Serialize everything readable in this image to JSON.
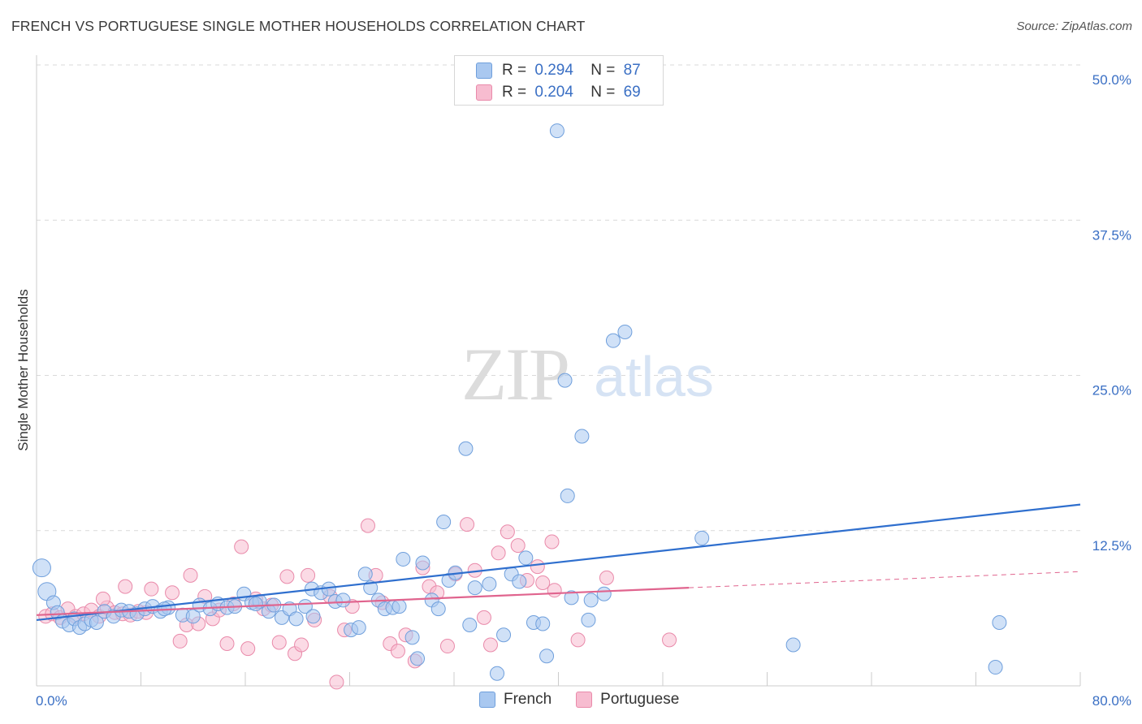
{
  "title": "FRENCH VS PORTUGUESE SINGLE MOTHER HOUSEHOLDS CORRELATION CHART",
  "source": "Source: ZipAtlas.com",
  "watermark": {
    "zip": "ZIP",
    "atlas": "atlas"
  },
  "legend": [
    {
      "r_label": "R =",
      "r_value": "0.294",
      "n_label": "N =",
      "n_value": "87"
    },
    {
      "r_label": "R =",
      "r_value": "0.204",
      "n_label": "N =",
      "n_value": "69"
    }
  ],
  "colors": {
    "french_fill": "#a9c8f0",
    "french_stroke": "#6f9fdc",
    "french_line": "#2f6fce",
    "portuguese_fill": "#f7bcd0",
    "portuguese_stroke": "#e98aaa",
    "portuguese_line": "#e0648e",
    "axis_label": "#3a6fc4",
    "grid": "#d9d9d9"
  },
  "chart_data": {
    "type": "scatter",
    "title": "FRENCH VS PORTUGUESE SINGLE MOTHER HOUSEHOLDS CORRELATION CHART",
    "xlabel": "",
    "ylabel": "Single Mother Households",
    "xlim": [
      0,
      80
    ],
    "ylim": [
      0,
      50
    ],
    "x_tick_labels": [
      "0.0%",
      "80.0%"
    ],
    "y_tick_labels": [
      "12.5%",
      "25.0%",
      "37.5%",
      "50.0%"
    ],
    "y_ticks": [
      12.5,
      25.0,
      37.5,
      50.0
    ],
    "grid": true,
    "legend_position": "top-center",
    "series": [
      {
        "name": "French",
        "r": 0.294,
        "n": 87,
        "trend": {
          "x": [
            0,
            80
          ],
          "y": [
            5.3,
            14.6
          ]
        },
        "points": [
          [
            0.4,
            9.5
          ],
          [
            0.8,
            7.6
          ],
          [
            1.3,
            6.7
          ],
          [
            1.6,
            5.9
          ],
          [
            2.0,
            5.2
          ],
          [
            2.5,
            4.9
          ],
          [
            2.9,
            5.4
          ],
          [
            3.3,
            4.7
          ],
          [
            3.7,
            5.0
          ],
          [
            4.2,
            5.3
          ],
          [
            4.6,
            5.1
          ],
          [
            5.2,
            6.0
          ],
          [
            5.9,
            5.6
          ],
          [
            6.5,
            6.1
          ],
          [
            7.1,
            6.0
          ],
          [
            7.7,
            5.8
          ],
          [
            8.3,
            6.2
          ],
          [
            8.9,
            6.4
          ],
          [
            9.5,
            6.0
          ],
          [
            10.1,
            6.3
          ],
          [
            11.2,
            5.7
          ],
          [
            12.0,
            5.6
          ],
          [
            12.5,
            6.5
          ],
          [
            13.3,
            6.2
          ],
          [
            13.9,
            6.6
          ],
          [
            14.6,
            6.3
          ],
          [
            15.2,
            6.4
          ],
          [
            15.9,
            7.4
          ],
          [
            16.5,
            6.7
          ],
          [
            17.1,
            6.8
          ],
          [
            17.8,
            6.0
          ],
          [
            18.2,
            6.5
          ],
          [
            18.8,
            5.5
          ],
          [
            19.4,
            6.2
          ],
          [
            19.9,
            5.4
          ],
          [
            20.6,
            6.4
          ],
          [
            21.2,
            5.6
          ],
          [
            21.1,
            7.8
          ],
          [
            21.8,
            7.5
          ],
          [
            22.4,
            7.8
          ],
          [
            22.9,
            6.8
          ],
          [
            23.5,
            6.9
          ],
          [
            24.1,
            4.5
          ],
          [
            24.7,
            4.7
          ],
          [
            25.2,
            9.0
          ],
          [
            25.6,
            7.9
          ],
          [
            26.2,
            6.9
          ],
          [
            26.7,
            6.2
          ],
          [
            27.3,
            6.3
          ],
          [
            27.8,
            6.4
          ],
          [
            28.1,
            10.2
          ],
          [
            28.8,
            3.9
          ],
          [
            29.2,
            2.2
          ],
          [
            29.6,
            9.9
          ],
          [
            30.3,
            6.9
          ],
          [
            30.8,
            6.2
          ],
          [
            31.2,
            13.2
          ],
          [
            31.6,
            8.5
          ],
          [
            32.1,
            9.1
          ],
          [
            32.9,
            19.1
          ],
          [
            33.2,
            4.9
          ],
          [
            33.6,
            7.9
          ],
          [
            34.7,
            8.2
          ],
          [
            35.3,
            1.0
          ],
          [
            35.8,
            4.1
          ],
          [
            36.4,
            9.0
          ],
          [
            37.0,
            8.4
          ],
          [
            37.5,
            10.3
          ],
          [
            38.1,
            5.1
          ],
          [
            38.8,
            5.0
          ],
          [
            39.1,
            2.4
          ],
          [
            39.9,
            44.7
          ],
          [
            40.5,
            24.6
          ],
          [
            40.7,
            15.3
          ],
          [
            41.8,
            20.1
          ],
          [
            42.5,
            6.9
          ],
          [
            42.3,
            5.3
          ],
          [
            43.5,
            7.4
          ],
          [
            44.2,
            27.8
          ],
          [
            45.1,
            28.5
          ],
          [
            51.0,
            11.9
          ],
          [
            58.0,
            3.3
          ],
          [
            73.5,
            1.5
          ],
          [
            73.8,
            5.1
          ],
          [
            41.0,
            7.1
          ],
          [
            9.8,
            6.2
          ],
          [
            16.8,
            6.6
          ]
        ]
      },
      {
        "name": "Portuguese",
        "r": 0.204,
        "n": 69,
        "trend": {
          "x": [
            0,
            50
          ],
          "y": [
            5.7,
            7.9
          ]
        },
        "trend_dashed": {
          "x": [
            50,
            80
          ],
          "y": [
            7.9,
            9.2
          ]
        },
        "points": [
          [
            0.7,
            5.6
          ],
          [
            1.2,
            5.8
          ],
          [
            1.8,
            5.5
          ],
          [
            2.4,
            6.2
          ],
          [
            3.0,
            5.6
          ],
          [
            3.6,
            5.8
          ],
          [
            4.2,
            6.1
          ],
          [
            4.8,
            5.6
          ],
          [
            5.4,
            6.3
          ],
          [
            6.0,
            5.9
          ],
          [
            6.6,
            5.8
          ],
          [
            7.2,
            5.7
          ],
          [
            7.8,
            6.0
          ],
          [
            8.4,
            5.9
          ],
          [
            5.1,
            7.0
          ],
          [
            6.8,
            8.0
          ],
          [
            8.8,
            7.8
          ],
          [
            10.4,
            7.5
          ],
          [
            11.0,
            3.6
          ],
          [
            11.5,
            4.9
          ],
          [
            11.8,
            8.9
          ],
          [
            12.4,
            5.0
          ],
          [
            12.9,
            7.2
          ],
          [
            13.5,
            5.4
          ],
          [
            14.0,
            6.1
          ],
          [
            14.6,
            3.4
          ],
          [
            15.1,
            6.6
          ],
          [
            15.7,
            11.2
          ],
          [
            16.2,
            3.0
          ],
          [
            16.8,
            7.0
          ],
          [
            17.4,
            6.2
          ],
          [
            18.0,
            6.5
          ],
          [
            18.6,
            3.5
          ],
          [
            19.2,
            8.8
          ],
          [
            19.8,
            2.6
          ],
          [
            20.3,
            3.3
          ],
          [
            20.8,
            8.9
          ],
          [
            21.3,
            5.3
          ],
          [
            22.5,
            7.2
          ],
          [
            23.0,
            0.3
          ],
          [
            23.6,
            4.5
          ],
          [
            24.2,
            6.4
          ],
          [
            25.4,
            12.9
          ],
          [
            26.0,
            8.9
          ],
          [
            26.5,
            6.7
          ],
          [
            27.1,
            3.4
          ],
          [
            27.7,
            2.8
          ],
          [
            28.3,
            4.1
          ],
          [
            29.0,
            2.0
          ],
          [
            29.6,
            9.5
          ],
          [
            30.1,
            8.0
          ],
          [
            30.7,
            7.5
          ],
          [
            31.5,
            3.2
          ],
          [
            32.1,
            9.0
          ],
          [
            33.0,
            13.0
          ],
          [
            33.6,
            9.3
          ],
          [
            34.3,
            5.5
          ],
          [
            34.8,
            3.3
          ],
          [
            35.4,
            10.7
          ],
          [
            36.1,
            12.4
          ],
          [
            36.9,
            11.3
          ],
          [
            37.6,
            8.5
          ],
          [
            38.4,
            9.6
          ],
          [
            38.8,
            8.3
          ],
          [
            39.5,
            11.6
          ],
          [
            39.7,
            7.7
          ],
          [
            41.5,
            3.7
          ],
          [
            43.7,
            8.7
          ],
          [
            48.5,
            3.7
          ]
        ]
      }
    ]
  }
}
